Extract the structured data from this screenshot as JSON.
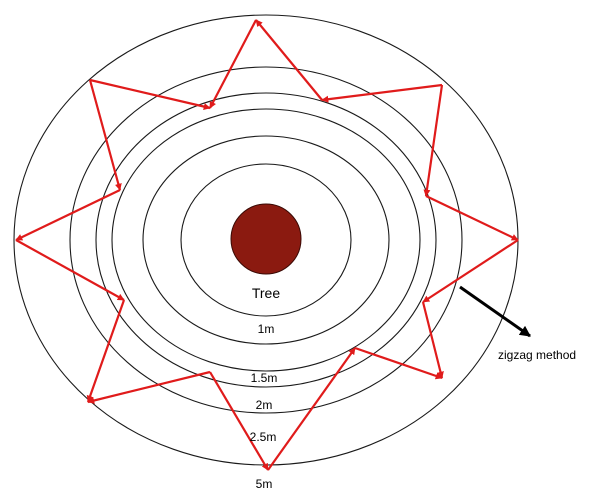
{
  "diagram": {
    "center_label": "Tree",
    "ring_labels": [
      "1m",
      "1.5m",
      "2m",
      "2.5m",
      "5m"
    ],
    "method_label": "zigzag method",
    "colors": {
      "tree_fill": "#8b1a10",
      "tree_stroke": "#3a0a05",
      "ring_stroke": "#1a1a1a",
      "zigzag": "#e01b1b",
      "pointer": "#000000"
    }
  }
}
